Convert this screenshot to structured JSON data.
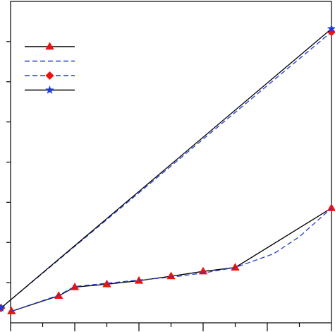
{
  "chart_data": {
    "type": "line",
    "title": "",
    "xlabel": "",
    "ylabel": "",
    "xlim": [
      0,
      1
    ],
    "ylim": [
      0,
      1
    ],
    "grid": false,
    "legend": {
      "position": "top-left",
      "entries": [
        {
          "series_index": 0
        },
        {
          "series_index": 1
        },
        {
          "series_index": 2
        },
        {
          "series_index": 3
        }
      ]
    },
    "series": [
      {
        "color": "#000000",
        "dash": "solid",
        "marker": "triangle",
        "marker_color": "#ee1111",
        "points": [
          [
            0.003,
            0.036
          ],
          [
            0.15,
            0.084
          ],
          [
            0.2,
            0.111
          ],
          [
            0.3,
            0.12
          ],
          [
            0.4,
            0.131
          ],
          [
            0.5,
            0.145
          ],
          [
            0.6,
            0.16
          ],
          [
            0.7,
            0.172
          ],
          [
            1.0,
            0.357
          ]
        ]
      },
      {
        "color": "#1f3bd6",
        "dash": "dashed",
        "marker": "none",
        "points": [
          [
            0.003,
            0.036
          ],
          [
            0.15,
            0.086
          ],
          [
            0.2,
            0.113
          ],
          [
            0.3,
            0.123
          ],
          [
            0.4,
            0.133
          ],
          [
            0.5,
            0.142
          ],
          [
            0.6,
            0.155
          ],
          [
            0.7,
            0.172
          ],
          [
            0.82,
            0.215
          ],
          [
            0.9,
            0.268
          ],
          [
            1.0,
            0.357
          ]
        ]
      },
      {
        "color": "#1f3bd6",
        "dash": "dashed",
        "marker": "diamond",
        "marker_color": "#ee1111",
        "points": [
          [
            -0.03,
            0.046
          ],
          [
            1.0,
            0.905
          ]
        ]
      },
      {
        "color": "#000000",
        "dash": "solid",
        "marker": "star",
        "marker_color": "#1f3bd6",
        "points": [
          [
            -0.03,
            0.046
          ],
          [
            1.0,
            0.915
          ]
        ]
      }
    ]
  }
}
